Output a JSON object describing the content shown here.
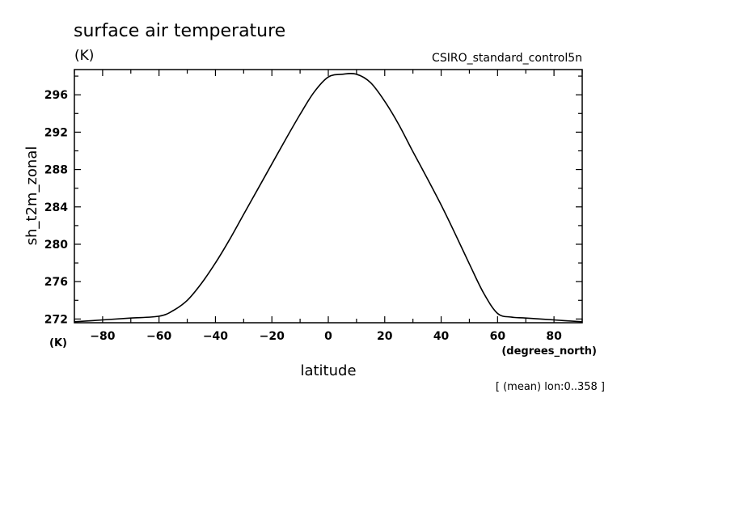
{
  "chart_data": {
    "type": "line",
    "title": "surface air temperature",
    "title_units": "(K)",
    "subtitle_right": "CSIRO_standard_control5n",
    "ylabel": "sh_t2m_zonal",
    "yunits": "(K)",
    "xlabel": "latitude",
    "xunits": "(degrees_north)",
    "note": "[ (mean) lon:0..358 ]",
    "xlim": [
      -90,
      90
    ],
    "ylim": [
      271.6,
      298.7
    ],
    "xticks": [
      -80,
      -60,
      -40,
      -20,
      0,
      20,
      40,
      60,
      80
    ],
    "yticks": [
      272,
      276,
      280,
      284,
      288,
      292,
      296
    ],
    "x_tick_labels": [
      "−80",
      "−60",
      "−40",
      "−20",
      "0",
      "20",
      "40",
      "60",
      "80"
    ],
    "y_tick_labels": [
      "272",
      "276",
      "280",
      "284",
      "288",
      "292",
      "296"
    ],
    "grid": false,
    "series": [
      {
        "x": [
          -90,
          -80,
          -70,
          -60,
          -55,
          -50,
          -45,
          -40,
          -35,
          -30,
          -25,
          -20,
          -15,
          -10,
          -5,
          0,
          5,
          10,
          15,
          20,
          25,
          30,
          35,
          40,
          45,
          50,
          55,
          60,
          65,
          70,
          80,
          90
        ],
        "y": [
          271.7,
          271.9,
          272.1,
          272.3,
          272.9,
          274.0,
          275.8,
          278.0,
          280.5,
          283.2,
          285.9,
          288.6,
          291.3,
          293.9,
          296.3,
          297.9,
          298.2,
          298.2,
          297.3,
          295.3,
          292.8,
          289.9,
          287.1,
          284.2,
          281.1,
          277.9,
          274.8,
          272.6,
          272.2,
          272.1,
          271.9,
          271.7
        ],
        "color": "#000000"
      }
    ]
  }
}
